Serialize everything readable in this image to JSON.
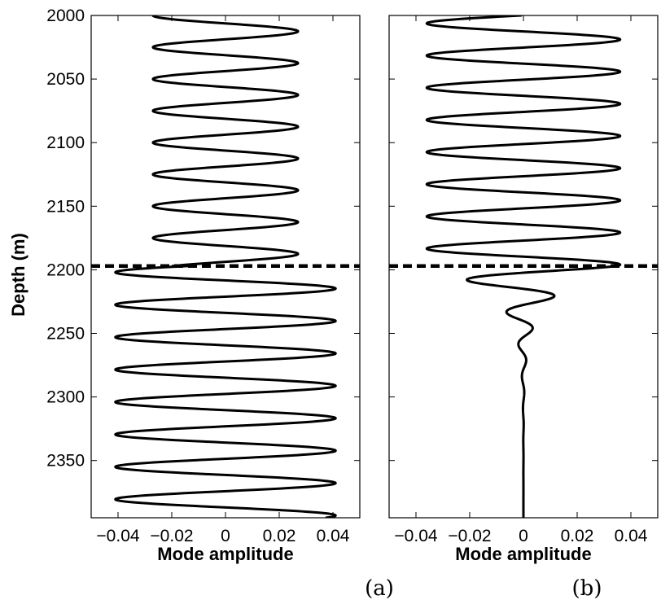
{
  "figure": {
    "panel_labels": [
      "(a)",
      "(b)"
    ]
  },
  "chart_data": [
    {
      "type": "line",
      "panel": "(a)",
      "title": "",
      "xlabel": "Mode amplitude",
      "ylabel": "Depth (m)",
      "xlim": [
        -0.05,
        0.05
      ],
      "ylim": [
        2395,
        2000
      ],
      "y_inverted": true,
      "xticks": [
        -0.04,
        -0.02,
        0,
        0.02,
        0.04
      ],
      "xtick_labels": [
        "−0.04",
        "−0.02",
        "0",
        "0.02",
        "0.04"
      ],
      "yticks": [
        2000,
        2050,
        2100,
        2150,
        2200,
        2250,
        2300,
        2350
      ],
      "ytick_labels": [
        "2000",
        "2050",
        "2100",
        "2150",
        "2200",
        "2250",
        "2300",
        "2350"
      ],
      "grid": false,
      "interface_depth": 2197,
      "series": [
        {
          "description_values": "sinusoidal mode shape: zero-mean oscillation, amplitude 0.027 (wavelength 25 m) above the interface at 2197 m, amplitude 0.041 (wavelength 25.5 m) below",
          "segments": [
            {
              "depth_from": 2000,
              "depth_to": 2197,
              "amplitude": 0.027,
              "wavelength": 25,
              "phase_depth": 2000,
              "start_value": -0.027
            },
            {
              "depth_from": 2197,
              "depth_to": 2395,
              "amplitude": 0.041,
              "wavelength": 25.5,
              "phase_depth": 2202,
              "start_value": -0.041
            }
          ]
        }
      ]
    },
    {
      "type": "line",
      "panel": "(b)",
      "title": "",
      "xlabel": "Mode amplitude",
      "ylabel": "",
      "xlim": [
        -0.05,
        0.05
      ],
      "ylim": [
        2395,
        2000
      ],
      "y_inverted": true,
      "xticks": [
        -0.04,
        -0.02,
        0,
        0.02,
        0.04
      ],
      "xtick_labels": [
        "−0.04",
        "−0.02",
        "0",
        "0.02",
        "0.04"
      ],
      "yticks": [
        2000,
        2050,
        2100,
        2150,
        2200,
        2250,
        2300,
        2350
      ],
      "ytick_labels": [],
      "grid": false,
      "interface_depth": 2197,
      "series": [
        {
          "description_values": "oscillation of amplitude 0.036 (wavelength 25.3 m) above the interface, decaying exponentially to 0 below it",
          "segments": [
            {
              "depth_from": 2000,
              "depth_to": 2197,
              "amplitude": 0.036,
              "wavelength": 25.3,
              "phase_depth": 2196,
              "start_value": 0.036
            },
            {
              "depth_from": 2197,
              "depth_to": 2395,
              "amplitude": 0.036,
              "wavelength": 25.3,
              "phase_depth": 2196,
              "decay_length": 21
            }
          ]
        }
      ]
    }
  ]
}
